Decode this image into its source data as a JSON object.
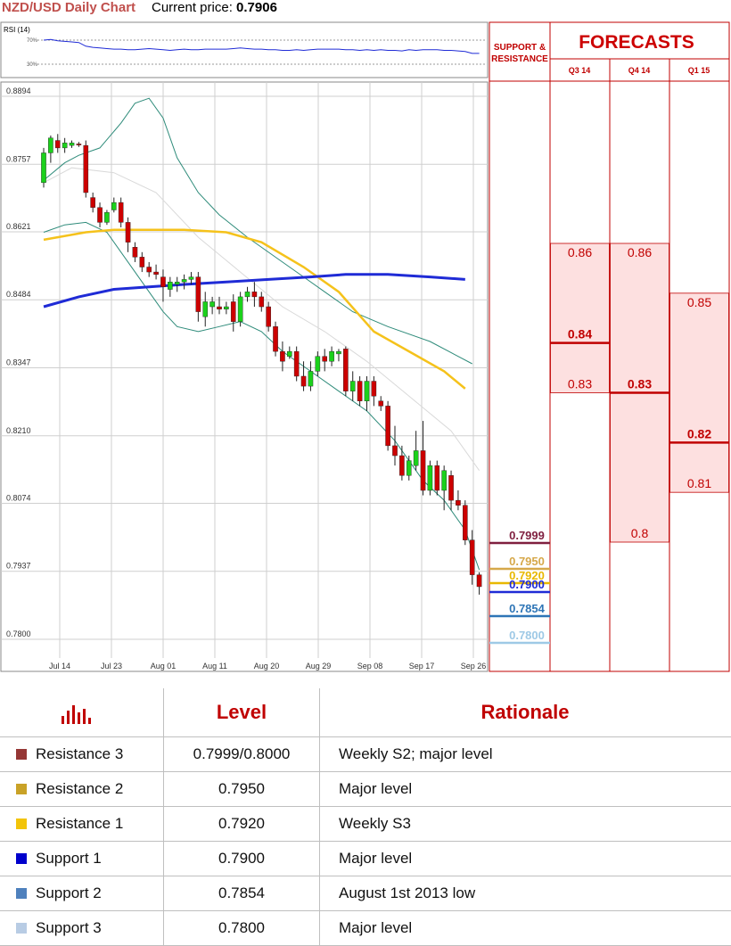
{
  "header": {
    "title": "NZD/USD Daily Chart",
    "price_label": "Current price:",
    "price_value": "0.7906"
  },
  "rsi": {
    "label": "RSI (14)",
    "levels": [
      "70%",
      "30%"
    ]
  },
  "side": {
    "sr_title_line1": "SUPPORT &",
    "sr_title_line2": "RESISTANCE",
    "forecast_title": "FORECASTS",
    "quarters": [
      "Q3 14",
      "Q4 14",
      "Q1 15"
    ]
  },
  "colors": {
    "red": "#cc0000",
    "bull": "#1bd11b",
    "ma_blue": "#1f2bd6",
    "ma_yellow": "#f5c21b",
    "bollinger": "#2e8b7a",
    "forecast_fill": "#fde0e0"
  },
  "chart_data": {
    "type": "candlestick",
    "ylim": [
      0.778,
      0.891
    ],
    "y_ticks": [
      "0.8894",
      "0.8757",
      "0.8621",
      "0.8484",
      "0.8347",
      "0.8210",
      "0.8074",
      "0.7937",
      "0.7800"
    ],
    "x_ticks": [
      "Jul 14",
      "Jul 23",
      "Aug 01",
      "Aug 11",
      "Aug 20",
      "Aug 29",
      "Sep 08",
      "Sep 17",
      "Sep 26"
    ],
    "candles": [
      {
        "o": 0.872,
        "h": 0.879,
        "l": 0.871,
        "c": 0.878
      },
      {
        "o": 0.878,
        "h": 0.8815,
        "l": 0.876,
        "c": 0.881
      },
      {
        "o": 0.8805,
        "h": 0.8818,
        "l": 0.878,
        "c": 0.879
      },
      {
        "o": 0.879,
        "h": 0.881,
        "l": 0.878,
        "c": 0.88
      },
      {
        "o": 0.8795,
        "h": 0.8805,
        "l": 0.879,
        "c": 0.88
      },
      {
        "o": 0.8798,
        "h": 0.8802,
        "l": 0.8792,
        "c": 0.8796
      },
      {
        "o": 0.8795,
        "h": 0.8805,
        "l": 0.869,
        "c": 0.87
      },
      {
        "o": 0.869,
        "h": 0.87,
        "l": 0.866,
        "c": 0.867
      },
      {
        "o": 0.867,
        "h": 0.868,
        "l": 0.863,
        "c": 0.864
      },
      {
        "o": 0.864,
        "h": 0.8665,
        "l": 0.8635,
        "c": 0.866
      },
      {
        "o": 0.8665,
        "h": 0.869,
        "l": 0.866,
        "c": 0.868
      },
      {
        "o": 0.868,
        "h": 0.869,
        "l": 0.863,
        "c": 0.864
      },
      {
        "o": 0.864,
        "h": 0.865,
        "l": 0.858,
        "c": 0.86
      },
      {
        "o": 0.859,
        "h": 0.86,
        "l": 0.856,
        "c": 0.857
      },
      {
        "o": 0.857,
        "h": 0.858,
        "l": 0.854,
        "c": 0.855
      },
      {
        "o": 0.855,
        "h": 0.856,
        "l": 0.853,
        "c": 0.854
      },
      {
        "o": 0.854,
        "h": 0.8555,
        "l": 0.8525,
        "c": 0.8535
      },
      {
        "o": 0.853,
        "h": 0.8545,
        "l": 0.848,
        "c": 0.851
      },
      {
        "o": 0.8505,
        "h": 0.853,
        "l": 0.849,
        "c": 0.852
      },
      {
        "o": 0.8515,
        "h": 0.853,
        "l": 0.85,
        "c": 0.852
      },
      {
        "o": 0.852,
        "h": 0.8535,
        "l": 0.8505,
        "c": 0.8525
      },
      {
        "o": 0.8525,
        "h": 0.854,
        "l": 0.8515,
        "c": 0.853
      },
      {
        "o": 0.853,
        "h": 0.854,
        "l": 0.844,
        "c": 0.846
      },
      {
        "o": 0.845,
        "h": 0.85,
        "l": 0.843,
        "c": 0.848
      },
      {
        "o": 0.847,
        "h": 0.849,
        "l": 0.8455,
        "c": 0.848
      },
      {
        "o": 0.847,
        "h": 0.849,
        "l": 0.8455,
        "c": 0.8465
      },
      {
        "o": 0.8465,
        "h": 0.848,
        "l": 0.8455,
        "c": 0.847
      },
      {
        "o": 0.848,
        "h": 0.8495,
        "l": 0.842,
        "c": 0.844
      },
      {
        "o": 0.844,
        "h": 0.85,
        "l": 0.843,
        "c": 0.849
      },
      {
        "o": 0.849,
        "h": 0.851,
        "l": 0.848,
        "c": 0.85
      },
      {
        "o": 0.85,
        "h": 0.852,
        "l": 0.847,
        "c": 0.849
      },
      {
        "o": 0.849,
        "h": 0.85,
        "l": 0.846,
        "c": 0.847
      },
      {
        "o": 0.847,
        "h": 0.848,
        "l": 0.842,
        "c": 0.843
      },
      {
        "o": 0.843,
        "h": 0.844,
        "l": 0.837,
        "c": 0.838
      },
      {
        "o": 0.838,
        "h": 0.84,
        "l": 0.834,
        "c": 0.836
      },
      {
        "o": 0.837,
        "h": 0.839,
        "l": 0.8365,
        "c": 0.838
      },
      {
        "o": 0.838,
        "h": 0.839,
        "l": 0.832,
        "c": 0.833
      },
      {
        "o": 0.833,
        "h": 0.836,
        "l": 0.83,
        "c": 0.831
      },
      {
        "o": 0.831,
        "h": 0.836,
        "l": 0.83,
        "c": 0.834
      },
      {
        "o": 0.834,
        "h": 0.838,
        "l": 0.833,
        "c": 0.837
      },
      {
        "o": 0.837,
        "h": 0.8385,
        "l": 0.834,
        "c": 0.836
      },
      {
        "o": 0.836,
        "h": 0.839,
        "l": 0.835,
        "c": 0.838
      },
      {
        "o": 0.8375,
        "h": 0.8385,
        "l": 0.836,
        "c": 0.838
      },
      {
        "o": 0.8385,
        "h": 0.839,
        "l": 0.829,
        "c": 0.83
      },
      {
        "o": 0.83,
        "h": 0.834,
        "l": 0.828,
        "c": 0.832
      },
      {
        "o": 0.832,
        "h": 0.833,
        "l": 0.827,
        "c": 0.828
      },
      {
        "o": 0.828,
        "h": 0.833,
        "l": 0.826,
        "c": 0.832
      },
      {
        "o": 0.832,
        "h": 0.833,
        "l": 0.827,
        "c": 0.829
      },
      {
        "o": 0.828,
        "h": 0.829,
        "l": 0.826,
        "c": 0.827
      },
      {
        "o": 0.827,
        "h": 0.828,
        "l": 0.818,
        "c": 0.819
      },
      {
        "o": 0.819,
        "h": 0.823,
        "l": 0.815,
        "c": 0.817
      },
      {
        "o": 0.817,
        "h": 0.819,
        "l": 0.812,
        "c": 0.813
      },
      {
        "o": 0.813,
        "h": 0.817,
        "l": 0.812,
        "c": 0.816
      },
      {
        "o": 0.815,
        "h": 0.822,
        "l": 0.814,
        "c": 0.818
      },
      {
        "o": 0.818,
        "h": 0.824,
        "l": 0.809,
        "c": 0.81
      },
      {
        "o": 0.81,
        "h": 0.816,
        "l": 0.809,
        "c": 0.815
      },
      {
        "o": 0.815,
        "h": 0.816,
        "l": 0.809,
        "c": 0.81
      },
      {
        "o": 0.81,
        "h": 0.815,
        "l": 0.806,
        "c": 0.814
      },
      {
        "o": 0.813,
        "h": 0.814,
        "l": 0.806,
        "c": 0.808
      },
      {
        "o": 0.808,
        "h": 0.81,
        "l": 0.806,
        "c": 0.807
      },
      {
        "o": 0.807,
        "h": 0.808,
        "l": 0.799,
        "c": 0.8
      },
      {
        "o": 0.8,
        "h": 0.802,
        "l": 0.791,
        "c": 0.793
      },
      {
        "o": 0.793,
        "h": 0.7935,
        "l": 0.789,
        "c": 0.7906
      }
    ],
    "ma_yellow": [
      [
        0,
        0.8605
      ],
      [
        6,
        0.862
      ],
      [
        10,
        0.8625
      ],
      [
        20,
        0.8625
      ],
      [
        26,
        0.862
      ],
      [
        31,
        0.86
      ],
      [
        37,
        0.855
      ],
      [
        42,
        0.85
      ],
      [
        47,
        0.842
      ],
      [
        52,
        0.838
      ],
      [
        57,
        0.834
      ],
      [
        60,
        0.8305
      ]
    ],
    "ma_blue": [
      [
        0,
        0.847
      ],
      [
        5,
        0.849
      ],
      [
        10,
        0.8505
      ],
      [
        20,
        0.8515
      ],
      [
        26,
        0.852
      ],
      [
        32,
        0.8525
      ],
      [
        38,
        0.853
      ],
      [
        43,
        0.8535
      ],
      [
        49,
        0.8535
      ],
      [
        55,
        0.853
      ],
      [
        60,
        0.8525
      ]
    ],
    "bb_upper": [
      [
        0,
        0.8725
      ],
      [
        3,
        0.876
      ],
      [
        5,
        0.8775
      ],
      [
        8,
        0.879
      ],
      [
        11,
        0.884
      ],
      [
        13,
        0.888
      ],
      [
        15,
        0.889
      ],
      [
        17,
        0.885
      ],
      [
        19,
        0.877
      ],
      [
        22,
        0.87
      ],
      [
        25,
        0.8655
      ],
      [
        29,
        0.861
      ],
      [
        33,
        0.857
      ],
      [
        37,
        0.853
      ],
      [
        40,
        0.85
      ],
      [
        44,
        0.846
      ],
      [
        49,
        0.843
      ],
      [
        55,
        0.84
      ],
      [
        59,
        0.837
      ],
      [
        61,
        0.8355
      ]
    ],
    "bb_lower": [
      [
        0,
        0.862
      ],
      [
        3,
        0.8635
      ],
      [
        6,
        0.864
      ],
      [
        9,
        0.862
      ],
      [
        12,
        0.856
      ],
      [
        15,
        0.85
      ],
      [
        17,
        0.846
      ],
      [
        19,
        0.843
      ],
      [
        22,
        0.842
      ],
      [
        25,
        0.843
      ],
      [
        28,
        0.844
      ],
      [
        31,
        0.842
      ],
      [
        34,
        0.838
      ],
      [
        38,
        0.834
      ],
      [
        42,
        0.83
      ],
      [
        46,
        0.826
      ],
      [
        50,
        0.82
      ],
      [
        54,
        0.812
      ],
      [
        57,
        0.808
      ],
      [
        60,
        0.802
      ],
      [
        62,
        0.794
      ]
    ],
    "bb_mid": [
      [
        0,
        0.872
      ],
      [
        4,
        0.875
      ],
      [
        10,
        0.874
      ],
      [
        16,
        0.87
      ],
      [
        22,
        0.861
      ],
      [
        28,
        0.854
      ],
      [
        34,
        0.847
      ],
      [
        40,
        0.842
      ],
      [
        46,
        0.836
      ],
      [
        52,
        0.829
      ],
      [
        58,
        0.822
      ],
      [
        62,
        0.814
      ]
    ],
    "rsi_values": [
      70,
      71,
      69,
      68,
      67,
      66,
      60,
      58,
      57,
      56,
      55,
      55,
      54,
      54,
      55,
      56,
      55,
      54,
      53,
      54,
      55,
      54,
      54,
      55,
      55,
      55,
      55,
      56,
      57,
      56,
      55,
      55,
      54,
      54,
      53,
      53,
      54,
      53,
      54,
      55,
      55,
      55,
      55,
      54,
      54,
      53,
      54,
      53,
      54,
      53,
      53,
      52,
      54,
      53,
      54,
      54,
      54,
      53,
      53,
      52,
      51,
      48,
      48
    ],
    "support_resistance": [
      {
        "value": "0.7999",
        "color": "#7f1f3f"
      },
      {
        "value": "0.7950",
        "color": "#d6a84a"
      },
      {
        "value": "0.7920",
        "color": "#e8b800"
      },
      {
        "value": "0.7900",
        "color": "#1f2bd6"
      },
      {
        "value": "0.7854",
        "color": "#2e75b6"
      },
      {
        "value": "0.7800",
        "color": "#9ec9e6"
      }
    ],
    "forecasts": [
      {
        "quarter": "Q3 14",
        "range": [
          0.83,
          0.86
        ],
        "labels": [
          "0.86",
          "0.84",
          "0.83"
        ],
        "mid": 0.84
      },
      {
        "quarter": "Q4 14",
        "range": [
          0.8,
          0.86
        ],
        "labels": [
          "0.86",
          "0.83",
          "0.8"
        ],
        "mid": 0.83
      },
      {
        "quarter": "Q1 15",
        "range": [
          0.81,
          0.85
        ],
        "labels": [
          "0.85",
          "0.82",
          "0.81"
        ],
        "mid": 0.82
      }
    ]
  },
  "table": {
    "headers": [
      "Level",
      "Rationale"
    ],
    "rows": [
      {
        "name": "Resistance 3",
        "level": "0.7999/0.8000",
        "rationale": "Weekly S2; major level",
        "color": "#953735"
      },
      {
        "name": "Resistance 2",
        "level": "0.7950",
        "rationale": "Major level",
        "color": "#c9a227"
      },
      {
        "name": "Resistance 1",
        "level": "0.7920",
        "rationale": "Weekly S3",
        "color": "#f2c40a"
      },
      {
        "name": "Support 1",
        "level": "0.7900",
        "rationale": "Major level",
        "color": "#0000cc"
      },
      {
        "name": "Support 2",
        "level": "0.7854",
        "rationale": "August 1st 2013 low",
        "color": "#4f81bd"
      },
      {
        "name": "Support 3",
        "level": "0.7800",
        "rationale": "Major level",
        "color": "#b8cce4"
      }
    ]
  }
}
